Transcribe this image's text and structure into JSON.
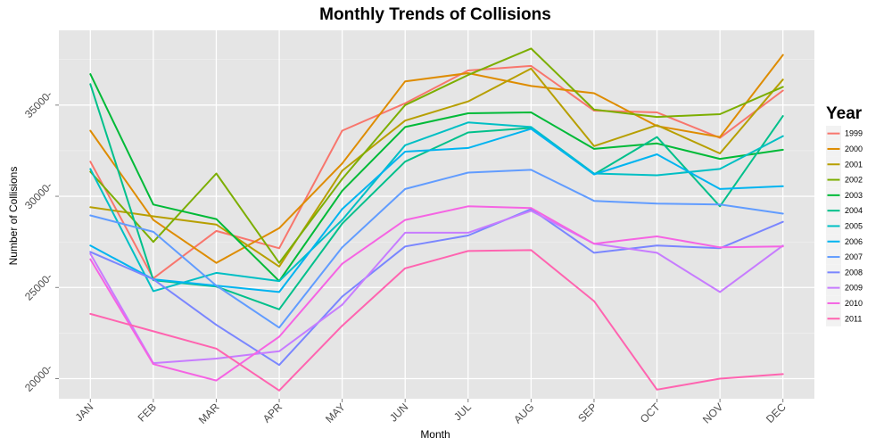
{
  "chart_data": {
    "type": "line",
    "title": "Monthly Trends of Collisions",
    "xlabel": "Month",
    "ylabel": "Number of Collisions",
    "categories": [
      "JAN",
      "FEB",
      "MAR",
      "APR",
      "MAY",
      "JUN",
      "JUL",
      "AUG",
      "SEP",
      "OCT",
      "NOV",
      "DEC"
    ],
    "ylim": [
      18900,
      39100
    ],
    "yticks": [
      20000,
      25000,
      30000,
      35000
    ],
    "ytick_labels": [
      "20000-",
      "25000-",
      "30000-",
      "35000-"
    ],
    "grid": true,
    "legend_title": "Year",
    "legend_position": "right",
    "background": "#e5e5e5",
    "series": [
      {
        "name": "1999",
        "color": "#f8766d",
        "values": [
          31900,
          25500,
          28100,
          27150,
          33600,
          35100,
          36900,
          37150,
          34700,
          34600,
          33200,
          35800
        ]
      },
      {
        "name": "2000",
        "color": "#de8c00",
        "values": [
          33600,
          28700,
          26350,
          28250,
          31800,
          36300,
          36750,
          36050,
          35650,
          33850,
          33250,
          37750
        ]
      },
      {
        "name": "2001",
        "color": "#b79f00",
        "values": [
          29400,
          28900,
          28450,
          26150,
          31400,
          34150,
          35200,
          37000,
          32750,
          33900,
          32350,
          36400
        ]
      },
      {
        "name": "2002",
        "color": "#7cae00",
        "values": [
          31350,
          27500,
          31250,
          26350,
          30950,
          35000,
          36650,
          38100,
          34750,
          34350,
          34500,
          36000
        ]
      },
      {
        "name": "2003",
        "color": "#00ba38",
        "values": [
          36700,
          29550,
          28750,
          25350,
          30300,
          33800,
          34550,
          34600,
          32600,
          32900,
          32050,
          32550
        ]
      },
      {
        "name": "2004",
        "color": "#00c08b",
        "values": [
          36150,
          25400,
          25050,
          23800,
          28500,
          31900,
          33500,
          33750,
          31200,
          33250,
          29450,
          34400
        ]
      },
      {
        "name": "2005",
        "color": "#00bfc4",
        "values": [
          31500,
          24800,
          25800,
          25350,
          28700,
          32800,
          34050,
          33800,
          31250,
          31150,
          31500,
          33300
        ]
      },
      {
        "name": "2006",
        "color": "#00b4f0",
        "values": [
          27300,
          25450,
          25100,
          24750,
          29300,
          32450,
          32650,
          33700,
          31200,
          32300,
          30400,
          30550
        ]
      },
      {
        "name": "2007",
        "color": "#619cff",
        "values": [
          28950,
          28050,
          25100,
          22800,
          27200,
          30400,
          31300,
          31450,
          29750,
          29600,
          29550,
          29050
        ]
      },
      {
        "name": "2008",
        "color": "#7a86ff",
        "values": [
          26950,
          25450,
          22950,
          20750,
          24500,
          27250,
          27850,
          29300,
          26900,
          27300,
          27150,
          28600
        ]
      },
      {
        "name": "2009",
        "color": "#c77cff",
        "values": [
          26850,
          20850,
          21100,
          21500,
          24050,
          28000,
          28000,
          29200,
          27400,
          26900,
          24750,
          27300
        ]
      },
      {
        "name": "2010",
        "color": "#f564e3",
        "values": [
          26550,
          20800,
          19900,
          22300,
          26300,
          28700,
          29450,
          29350,
          27400,
          27800,
          27200,
          27250
        ]
      },
      {
        "name": "2011",
        "color": "#ff64b0",
        "values": [
          23550,
          22600,
          21650,
          19350,
          22900,
          26050,
          27000,
          27050,
          24250,
          19400,
          20000,
          20250
        ]
      }
    ]
  }
}
